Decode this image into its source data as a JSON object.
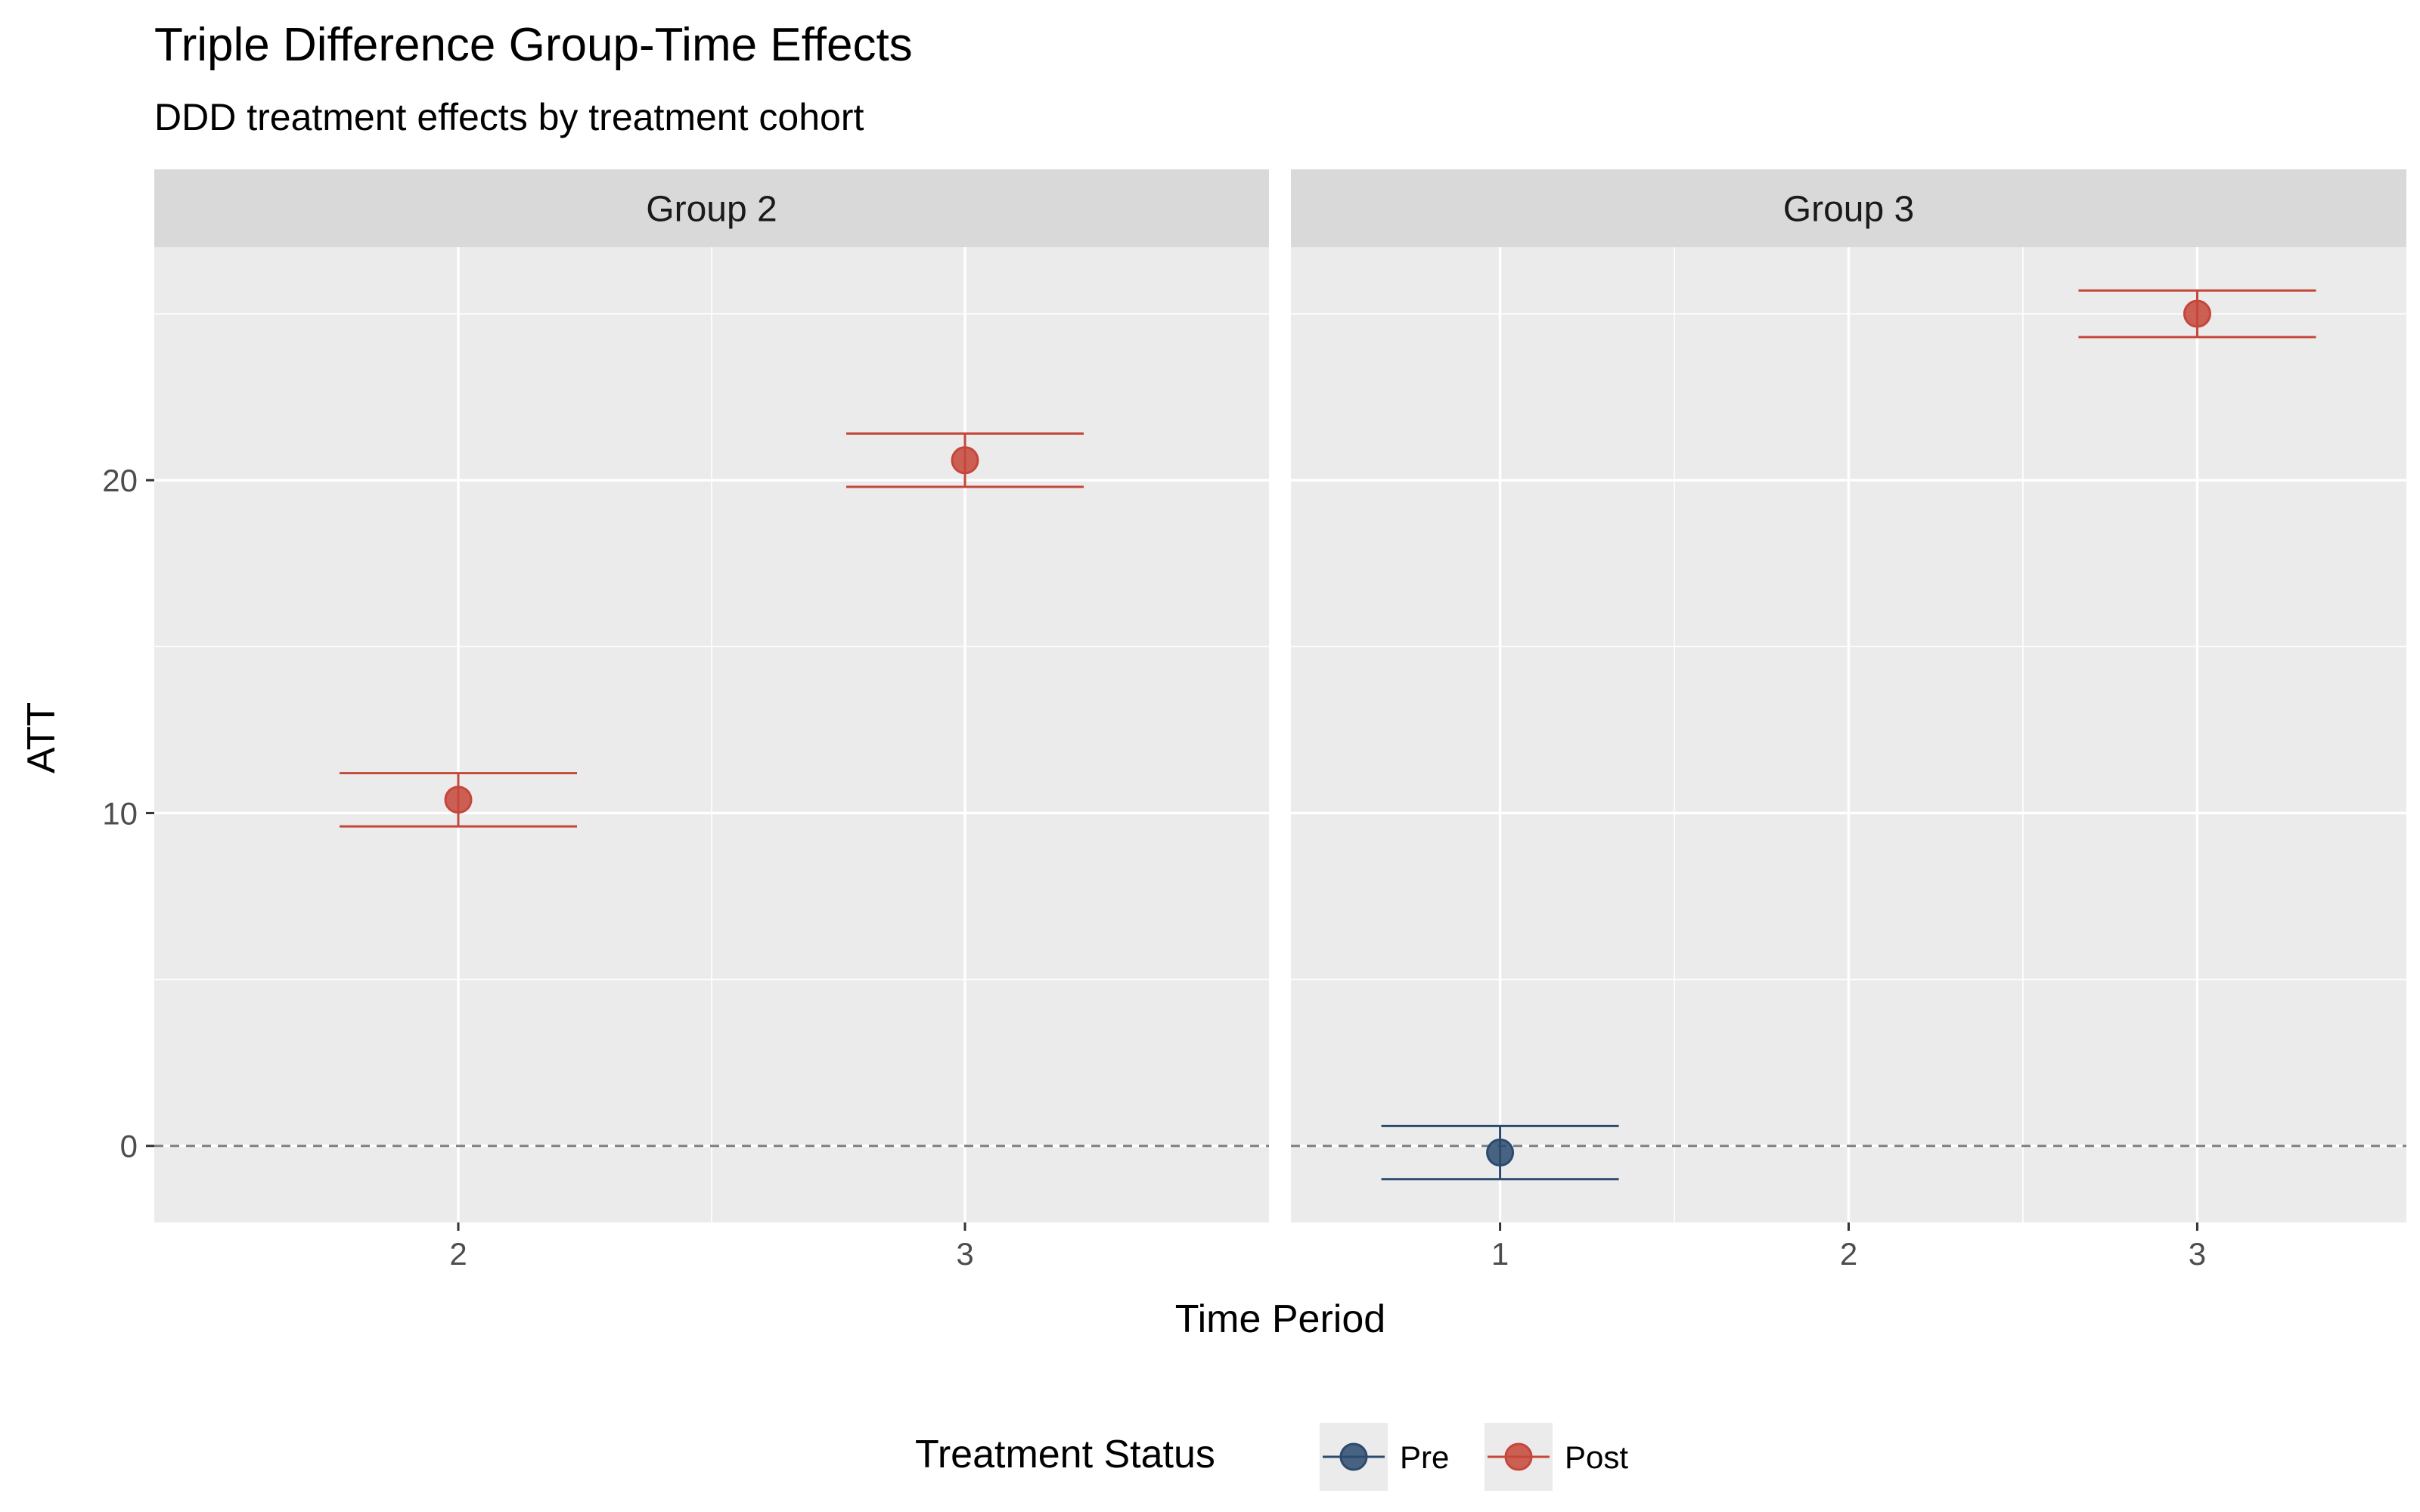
{
  "chart_data": {
    "type": "scatter",
    "title": "Triple Difference Group-Time Effects",
    "subtitle": "DDD treatment effects by treatment cohort",
    "xlabel": "Time Period",
    "ylabel": "ATT",
    "ylim": [
      -2.3,
      27.0
    ],
    "yticks": [
      0,
      10,
      20
    ],
    "reference_line": 0,
    "grid": true,
    "legend": {
      "title": "Treatment Status",
      "position": "bottom",
      "entries": [
        {
          "label": "Pre",
          "color": "#2c4a6e"
        },
        {
          "label": "Post",
          "color": "#c5463a"
        }
      ]
    },
    "panels": [
      {
        "label": "Group 2",
        "x_categories": [
          "2",
          "3"
        ],
        "points": [
          {
            "x": "2",
            "att": 10.4,
            "ci_low": 9.6,
            "ci_high": 11.2,
            "status": "Post"
          },
          {
            "x": "3",
            "att": 20.6,
            "ci_low": 19.8,
            "ci_high": 21.4,
            "status": "Post"
          }
        ]
      },
      {
        "label": "Group 3",
        "x_categories": [
          "1",
          "2",
          "3"
        ],
        "points": [
          {
            "x": "1",
            "att": -0.2,
            "ci_low": -1.0,
            "ci_high": 0.6,
            "status": "Pre"
          },
          {
            "x": "3",
            "att": 25.0,
            "ci_low": 24.3,
            "ci_high": 25.7,
            "status": "Post"
          }
        ]
      }
    ]
  }
}
